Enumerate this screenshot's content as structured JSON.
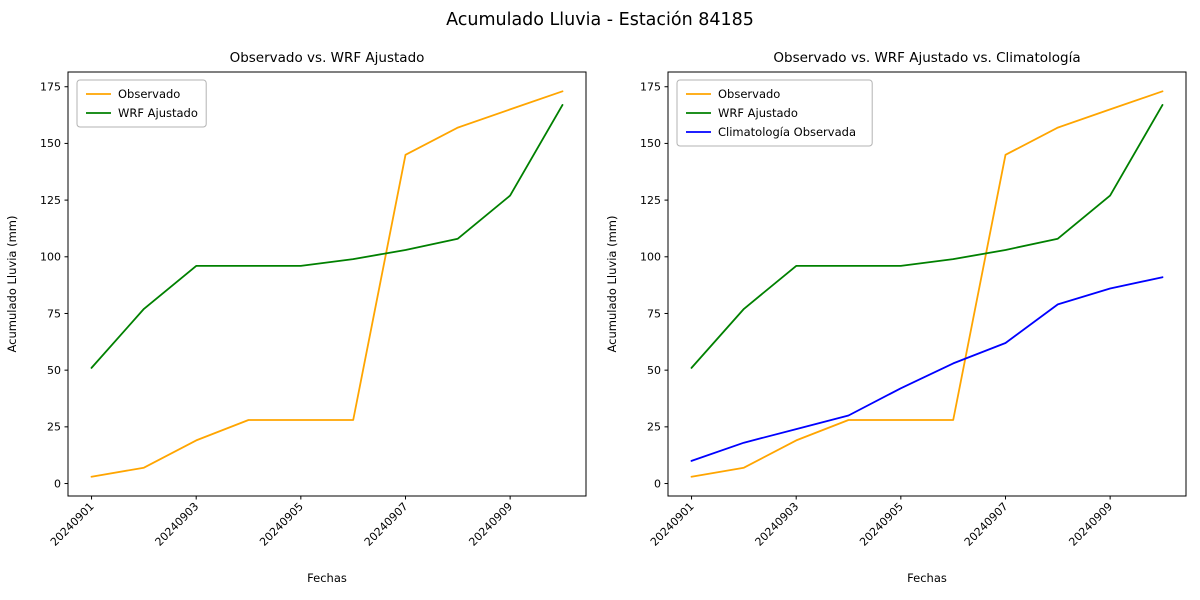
{
  "figure_title": "Acumulado Lluvia - Estación 84185",
  "colors": {
    "observado": "#ffa500",
    "wrf_ajustado": "#008000",
    "climatologia": "#0000ff",
    "axes": "#000000",
    "legend_border": "#b3b3b3",
    "background": "#ffffff"
  },
  "chart_data": [
    {
      "type": "line",
      "title": "Observado vs. WRF Ajustado",
      "xlabel": "Fechas",
      "ylabel": "Acumulado Lluvia (mm)",
      "x": [
        "20240901",
        "20240902",
        "20240903",
        "20240904",
        "20240905",
        "20240906",
        "20240907",
        "20240908",
        "20240909",
        "20240910"
      ],
      "x_tick_labels": [
        "20240901",
        "20240903",
        "20240905",
        "20240907",
        "20240909"
      ],
      "x_tick_rotation": 45,
      "y_ticks": [
        0,
        25,
        50,
        75,
        100,
        125,
        150,
        175
      ],
      "ylim": [
        0,
        175
      ],
      "grid": false,
      "legend_position": "upper left",
      "series": [
        {
          "name": "Observado",
          "color": "#ffa500",
          "values": [
            3,
            7,
            19,
            28,
            28,
            28,
            145,
            157,
            165,
            173
          ]
        },
        {
          "name": "WRF Ajustado",
          "color": "#008000",
          "values": [
            51,
            77,
            96,
            96,
            96,
            99,
            103,
            108,
            127,
            167
          ]
        }
      ]
    },
    {
      "type": "line",
      "title": "Observado vs. WRF Ajustado vs. Climatología",
      "xlabel": "Fechas",
      "ylabel": "Acumulado Lluvia (mm)",
      "x": [
        "20240901",
        "20240902",
        "20240903",
        "20240904",
        "20240905",
        "20240906",
        "20240907",
        "20240908",
        "20240909",
        "20240910"
      ],
      "x_tick_labels": [
        "20240901",
        "20240903",
        "20240905",
        "20240907",
        "20240909"
      ],
      "x_tick_rotation": 45,
      "y_ticks": [
        0,
        25,
        50,
        75,
        100,
        125,
        150,
        175
      ],
      "ylim": [
        0,
        175
      ],
      "grid": false,
      "legend_position": "upper left",
      "series": [
        {
          "name": "Observado",
          "color": "#ffa500",
          "values": [
            3,
            7,
            19,
            28,
            28,
            28,
            145,
            157,
            165,
            173
          ]
        },
        {
          "name": "WRF Ajustado",
          "color": "#008000",
          "values": [
            51,
            77,
            96,
            96,
            96,
            99,
            103,
            108,
            127,
            167
          ]
        },
        {
          "name": "Climatología Observada",
          "color": "#0000ff",
          "values": [
            10,
            18,
            24,
            30,
            42,
            53,
            62,
            79,
            86,
            91
          ]
        }
      ]
    }
  ]
}
